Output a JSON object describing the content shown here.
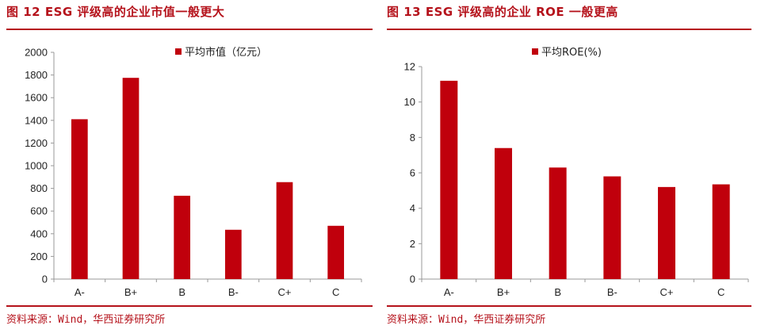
{
  "colors": {
    "accent": "#b5121b",
    "bar": "#c0000c",
    "axis": "#999999"
  },
  "panels": [
    {
      "title": "图 12 ESG 评级高的企业市值一般更大",
      "source": "资料来源：Wind，华西证券研究所"
    },
    {
      "title": "图 13 ESG 评级高的企业 ROE 一般更高",
      "source": "资料来源：Wind，华西证券研究所"
    }
  ],
  "chart_data": [
    {
      "type": "bar",
      "categories": [
        "A-",
        "B+",
        "B",
        "B-",
        "C+",
        "C"
      ],
      "series": [
        {
          "name": "平均市值（亿元）",
          "values": [
            1410,
            1775,
            735,
            435,
            855,
            470
          ]
        }
      ],
      "ylim": [
        0,
        2000
      ],
      "yticks": [
        0,
        200,
        400,
        600,
        800,
        1000,
        1200,
        1400,
        1600,
        1800,
        2000
      ],
      "legend_position": "top-center",
      "grid": false
    },
    {
      "type": "bar",
      "categories": [
        "A-",
        "B+",
        "B",
        "B-",
        "C+",
        "C"
      ],
      "series": [
        {
          "name": "平均ROE(%)",
          "values": [
            11.2,
            7.4,
            6.3,
            5.8,
            5.2,
            5.35
          ]
        }
      ],
      "ylim": [
        0,
        12
      ],
      "yticks": [
        0,
        2,
        4,
        6,
        8,
        10,
        12
      ],
      "legend_position": "top-center",
      "grid": false
    }
  ]
}
